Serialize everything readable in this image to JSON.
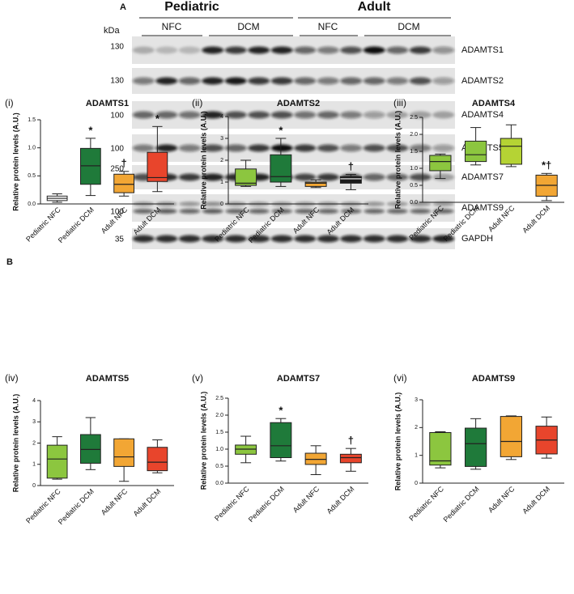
{
  "blot": {
    "label": "A",
    "groups": [
      "Pediatric",
      "Adult"
    ],
    "subgroups": [
      "NFC",
      "DCM",
      "NFC",
      "DCM"
    ],
    "unit": "kDa",
    "rows": [
      {
        "marker": "130",
        "protein": "ADAMTS1"
      },
      {
        "marker": "130",
        "protein": "ADAMTS2"
      },
      {
        "marker": "100",
        "protein": "ADAMTS4"
      },
      {
        "marker": "100",
        "protein": "ADAMTS5"
      },
      {
        "marker": "250",
        "protein": "ADAMTS7"
      },
      {
        "marker": "100",
        "protein": "ADAMTS9"
      },
      {
        "marker": "35",
        "protein": "GAPDH"
      }
    ]
  },
  "panel_b_label": "B",
  "chart_data": [
    {
      "type": "box",
      "panel": "(i)",
      "title": "ADAMTS1",
      "ylabel": "Relative protein levels (A.U.)",
      "categories": [
        "Pediatric NFC",
        "Pediatric DCM",
        "Adult NFC",
        "Adult DCM"
      ],
      "ylim": [
        0,
        1.5
      ],
      "yticks": [
        {
          "value": 0,
          "label": "0.0"
        },
        0.5,
        {
          "value": 1,
          "label": "1.0"
        },
        1.5
      ],
      "boxes": [
        {
          "min": 0.03,
          "q1": 0.06,
          "median": 0.1,
          "q3": 0.14,
          "max": 0.18,
          "color": "#ffffff"
        },
        {
          "min": 0.15,
          "q1": 0.35,
          "median": 0.68,
          "q3": 0.99,
          "max": 1.17,
          "color": "#1f7a3a"
        },
        {
          "min": 0.14,
          "q1": 0.2,
          "median": 0.35,
          "q3": 0.53,
          "max": 0.58,
          "color": "#f2a634"
        },
        {
          "min": 0.22,
          "q1": 0.4,
          "median": 0.47,
          "q3": 0.92,
          "max": 1.38,
          "color": "#e8452c"
        }
      ],
      "annotations": [
        null,
        "*",
        "†",
        "*"
      ]
    },
    {
      "type": "box",
      "panel": "(ii)",
      "title": "ADAMTS2",
      "ylabel": "Relative protein levels (A.U.)",
      "categories": [
        "Pediatric NFC",
        "Pediatric DCM",
        "Adult NFC",
        "Adult DCM"
      ],
      "ylim": [
        0,
        4
      ],
      "yticks": [
        0,
        1,
        2,
        3,
        4
      ],
      "boxes": [
        {
          "min": 0.8,
          "q1": 0.85,
          "median": 0.95,
          "q3": 1.6,
          "max": 2.0,
          "color": "#8cc63f"
        },
        {
          "min": 0.8,
          "q1": 1.0,
          "median": 1.25,
          "q3": 2.25,
          "max": 3.0,
          "color": "#1f7a3a"
        },
        {
          "min": 0.75,
          "q1": 0.8,
          "median": 0.95,
          "q3": 1.0,
          "max": 1.1,
          "color": "#f2a634"
        },
        {
          "min": 0.65,
          "q1": 0.95,
          "median": 1.15,
          "q3": 1.25,
          "max": 1.35,
          "color": "#1a1a1a"
        }
      ],
      "annotations": [
        null,
        "*",
        null,
        "†"
      ]
    },
    {
      "type": "box",
      "panel": "(iii)",
      "title": "ADAMTS4",
      "ylabel": "Relative protein levels (A.U.)",
      "categories": [
        "Pediatric NFC",
        "Pediatric DCM",
        "Adult NFC",
        "Adult DCM"
      ],
      "ylim": [
        0,
        2.5
      ],
      "yticks": [
        {
          "value": 0,
          "label": "0.0"
        },
        0.5,
        {
          "value": 1,
          "label": "1.0"
        },
        1.5,
        {
          "value": 2,
          "label": "2.0"
        },
        2.5
      ],
      "boxes": [
        {
          "min": 0.7,
          "q1": 0.93,
          "median": 1.2,
          "q3": 1.38,
          "max": 1.42,
          "color": "#8cc63f"
        },
        {
          "min": 1.1,
          "q1": 1.2,
          "median": 1.4,
          "q3": 1.8,
          "max": 2.2,
          "color": "#8cc63f"
        },
        {
          "min": 1.05,
          "q1": 1.12,
          "median": 1.65,
          "q3": 1.88,
          "max": 2.28,
          "color": "#b5d334"
        },
        {
          "min": 0.05,
          "q1": 0.18,
          "median": 0.5,
          "q3": 0.8,
          "max": 0.85,
          "color": "#f2a634"
        }
      ],
      "annotations": [
        null,
        null,
        null,
        "*†"
      ]
    },
    {
      "type": "box",
      "panel": "(iv)",
      "title": "ADAMTS5",
      "ylabel": "Relative protein levels (A.U.)",
      "categories": [
        "Pediatric NFC",
        "Pediatric DCM",
        "Adult NFC",
        "Adult DCM"
      ],
      "ylim": [
        0,
        4
      ],
      "yticks": [
        0,
        1,
        2,
        3,
        4
      ],
      "boxes": [
        {
          "min": 0.3,
          "q1": 0.35,
          "median": 1.25,
          "q3": 1.9,
          "max": 2.3,
          "color": "#8cc63f"
        },
        {
          "min": 0.75,
          "q1": 1.05,
          "median": 1.7,
          "q3": 2.4,
          "max": 3.2,
          "color": "#1f7a3a"
        },
        {
          "min": 0.2,
          "q1": 0.9,
          "median": 1.35,
          "q3": 2.2,
          "max": 2.2,
          "color": "#f2a634"
        },
        {
          "min": 0.6,
          "q1": 0.7,
          "median": 1.1,
          "q3": 1.8,
          "max": 2.15,
          "color": "#e8452c"
        }
      ],
      "annotations": [
        null,
        null,
        null,
        null
      ]
    },
    {
      "type": "box",
      "panel": "(v)",
      "title": "ADAMTS7",
      "ylabel": "Relative protein levels (A.U.)",
      "categories": [
        "Pediatric NFC",
        "Pediatric DCM",
        "Adult NFC",
        "Adult DCM"
      ],
      "ylim": [
        0,
        2.5
      ],
      "yticks": [
        {
          "value": 0,
          "label": "0.0"
        },
        0.5,
        {
          "value": 1,
          "label": "1.0"
        },
        1.5,
        {
          "value": 2,
          "label": "2.0"
        },
        2.5
      ],
      "boxes": [
        {
          "min": 0.6,
          "q1": 0.85,
          "median": 1.0,
          "q3": 1.12,
          "max": 1.38,
          "color": "#8cc63f"
        },
        {
          "min": 0.65,
          "q1": 0.75,
          "median": 1.1,
          "q3": 1.78,
          "max": 1.9,
          "color": "#1f7a3a"
        },
        {
          "min": 0.25,
          "q1": 0.55,
          "median": 0.7,
          "q3": 0.88,
          "max": 1.1,
          "color": "#f2a634"
        },
        {
          "min": 0.35,
          "q1": 0.6,
          "median": 0.75,
          "q3": 0.85,
          "max": 1.02,
          "color": "#e8452c"
        }
      ],
      "annotations": [
        null,
        "*",
        null,
        "†"
      ]
    },
    {
      "type": "box",
      "panel": "(vi)",
      "title": "ADAMTS9",
      "ylabel": "Relative protein levels (A.U.)",
      "categories": [
        "Pediatric NFC",
        "Pediatric DCM",
        "Adult NFC",
        "Adult DCM"
      ],
      "ylim": [
        0,
        3
      ],
      "yticks": [
        0,
        1,
        2,
        3
      ],
      "boxes": [
        {
          "min": 0.55,
          "q1": 0.65,
          "median": 0.8,
          "q3": 1.82,
          "max": 1.85,
          "color": "#8cc63f"
        },
        {
          "min": 0.5,
          "q1": 0.6,
          "median": 1.42,
          "q3": 1.98,
          "max": 2.32,
          "color": "#1f7a3a"
        },
        {
          "min": 0.85,
          "q1": 0.95,
          "median": 1.5,
          "q3": 2.4,
          "max": 2.42,
          "color": "#f2a634"
        },
        {
          "min": 0.9,
          "q1": 1.05,
          "median": 1.55,
          "q3": 2.05,
          "max": 2.38,
          "color": "#e8452c"
        }
      ],
      "annotations": [
        null,
        null,
        null,
        null
      ]
    }
  ]
}
